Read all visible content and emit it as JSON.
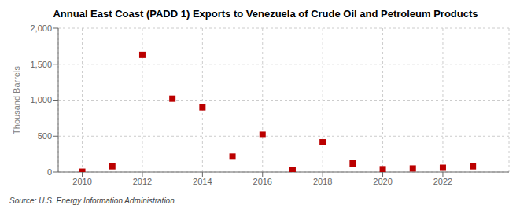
{
  "chart_data": {
    "type": "scatter",
    "title": "Annual East Coast (PADD 1) Exports to Venezuela of Crude Oil and Petroleum Products",
    "ylabel": "Thousand Barrels",
    "annotations": [
      "Source: U.S. Energy Information Administration"
    ],
    "x": [
      2010,
      2011,
      2012,
      2013,
      2014,
      2015,
      2016,
      2017,
      2018,
      2019,
      2020,
      2021,
      2022,
      2023
    ],
    "values": [
      5,
      80,
      1630,
      1020,
      900,
      215,
      520,
      25,
      415,
      120,
      40,
      50,
      60,
      80
    ],
    "color": "#bb0000",
    "marker": "square",
    "xlim": [
      2009.2,
      2024.2
    ],
    "xticks": [
      2010,
      2012,
      2014,
      2016,
      2018,
      2020,
      2022
    ],
    "ylim": [
      0,
      2000
    ],
    "yticks": [
      0,
      500,
      {
        "value": 1000,
        "label": "1,000"
      },
      {
        "value": 1500,
        "label": "1,500"
      },
      {
        "value": 2000,
        "label": "2,000"
      }
    ],
    "grid": true
  }
}
